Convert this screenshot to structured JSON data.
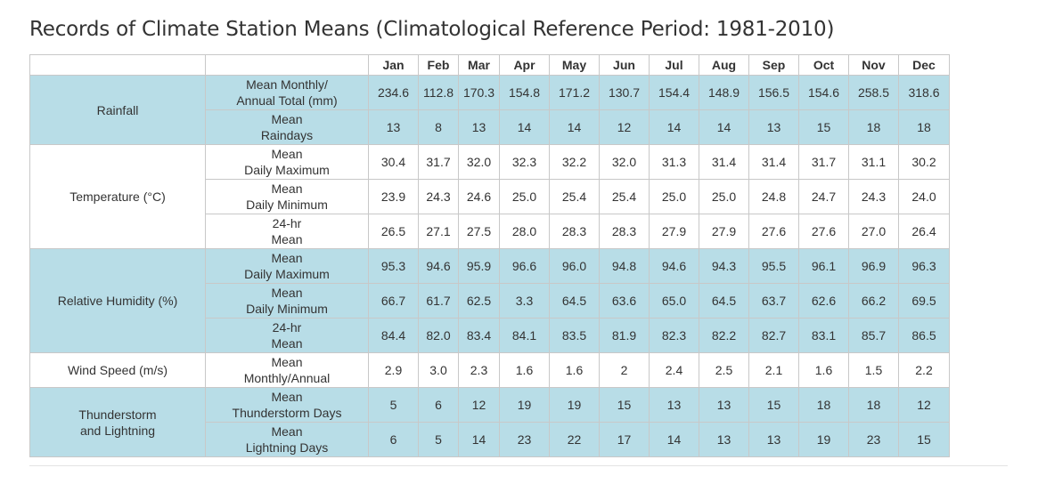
{
  "title": "Records of Climate Station Means (Climatological Reference Period: 1981-2010)",
  "months": [
    "Jan",
    "Feb",
    "Mar",
    "Apr",
    "May",
    "Jun",
    "Jul",
    "Aug",
    "Sep",
    "Oct",
    "Nov",
    "Dec"
  ],
  "groups": [
    {
      "name": "Rainfall",
      "shaded": true,
      "rows": [
        {
          "label": "Mean Monthly/\nAnnual Total (mm)",
          "values": [
            "234.6",
            "112.8",
            "170.3",
            "154.8",
            "171.2",
            "130.7",
            "154.4",
            "148.9",
            "156.5",
            "154.6",
            "258.5",
            "318.6"
          ]
        },
        {
          "label": "Mean\nRaindays",
          "values": [
            "13",
            "8",
            "13",
            "14",
            "14",
            "12",
            "14",
            "14",
            "13",
            "15",
            "18",
            "18"
          ]
        }
      ]
    },
    {
      "name": "Temperature (°C)",
      "shaded": false,
      "rows": [
        {
          "label": "Mean\nDaily Maximum",
          "values": [
            "30.4",
            "31.7",
            "32.0",
            "32.3",
            "32.2",
            "32.0",
            "31.3",
            "31.4",
            "31.4",
            "31.7",
            "31.1",
            "30.2"
          ]
        },
        {
          "label": "Mean\nDaily Minimum",
          "values": [
            "23.9",
            "24.3",
            "24.6",
            "25.0",
            "25.4",
            "25.4",
            "25.0",
            "25.0",
            "24.8",
            "24.7",
            "24.3",
            "24.0"
          ]
        },
        {
          "label": "24-hr\nMean",
          "values": [
            "26.5",
            "27.1",
            "27.5",
            "28.0",
            "28.3",
            "28.3",
            "27.9",
            "27.9",
            "27.6",
            "27.6",
            "27.0",
            "26.4"
          ]
        }
      ]
    },
    {
      "name": "Relative Humidity (%)",
      "shaded": true,
      "rows": [
        {
          "label": "Mean\nDaily Maximum",
          "values": [
            "95.3",
            "94.6",
            "95.9",
            "96.6",
            "96.0",
            "94.8",
            "94.6",
            "94.3",
            "95.5",
            "96.1",
            "96.9",
            "96.3"
          ]
        },
        {
          "label": "Mean\nDaily Minimum",
          "values": [
            "66.7",
            "61.7",
            "62.5",
            "3.3",
            "64.5",
            "63.6",
            "65.0",
            "64.5",
            "63.7",
            "62.6",
            "66.2",
            "69.5"
          ]
        },
        {
          "label": "24-hr\nMean",
          "values": [
            "84.4",
            "82.0",
            "83.4",
            "84.1",
            "83.5",
            "81.9",
            "82.3",
            "82.2",
            "82.7",
            "83.1",
            "85.7",
            "86.5"
          ]
        }
      ]
    },
    {
      "name": "Wind Speed (m/s)",
      "shaded": false,
      "rows": [
        {
          "label": "Mean\nMonthly/Annual",
          "values": [
            "2.9",
            "3.0",
            "2.3",
            "1.6",
            "1.6",
            "2",
            "2.4",
            "2.5",
            "2.1",
            "1.6",
            "1.5",
            "2.2"
          ]
        }
      ]
    },
    {
      "name": "Thunderstorm\nand Lightning",
      "shaded": true,
      "rows": [
        {
          "label": "Mean\nThunderstorm Days",
          "values": [
            "5",
            "6",
            "12",
            "19",
            "19",
            "15",
            "13",
            "13",
            "15",
            "18",
            "18",
            "12"
          ]
        },
        {
          "label": "Mean\nLightning Days",
          "values": [
            "6",
            "5",
            "14",
            "23",
            "22",
            "17",
            "14",
            "13",
            "13",
            "19",
            "23",
            "15"
          ]
        }
      ]
    }
  ]
}
